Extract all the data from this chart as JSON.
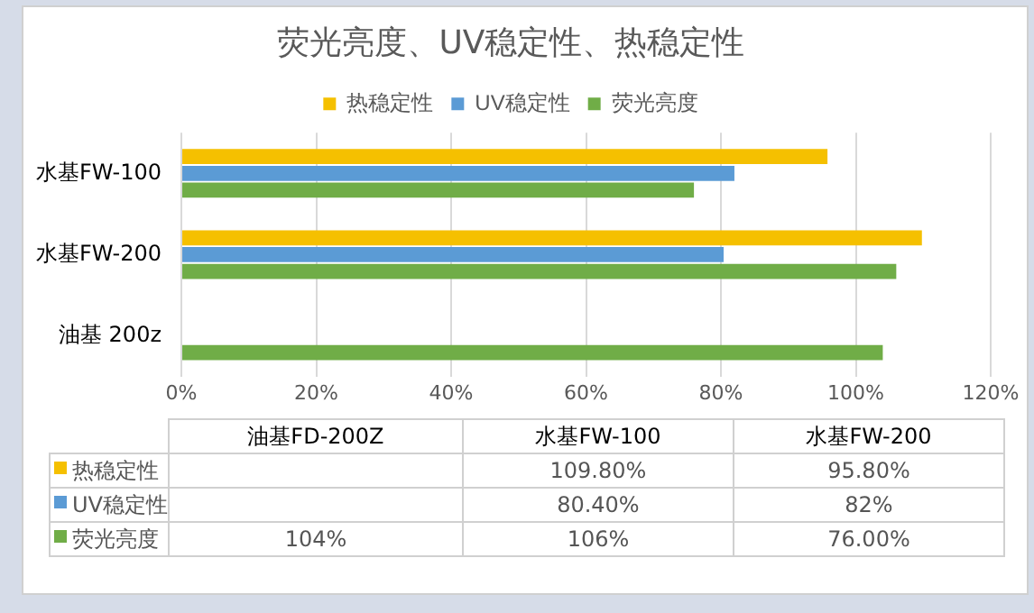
{
  "chart_data": [
    {
      "type": "bar",
      "orientation": "horizontal",
      "title": "荧光亮度、UV稳定性、热稳定性",
      "legend": "top",
      "categories": [
        "水基FW-100",
        "水基FW-200",
        "油基 200z"
      ],
      "series": [
        {
          "name": "热稳定性",
          "color": "#f5c000",
          "values": [
            95.8,
            109.8,
            null
          ]
        },
        {
          "name": "UV稳定性",
          "color": "#5b9bd5",
          "values": [
            82,
            80.4,
            null
          ]
        },
        {
          "name": "荧光亮度",
          "color": "#70ad47",
          "values": [
            76,
            106,
            104
          ]
        }
      ],
      "xlim": [
        0,
        120
      ],
      "xticks": [
        {
          "value": 0,
          "label": "0%"
        },
        {
          "value": 20,
          "label": "20%"
        },
        {
          "value": 40,
          "label": "40%"
        },
        {
          "value": 60,
          "label": "60%"
        },
        {
          "value": 80,
          "label": "80%"
        },
        {
          "value": 100,
          "label": "100%"
        },
        {
          "value": 120,
          "label": "120%"
        }
      ],
      "grid": "x"
    },
    {
      "type": "other",
      "categories": [
        "油基FD-200Z",
        "水基FW-100",
        "水基FW-200"
      ],
      "series": [
        {
          "name": "热稳定性",
          "color": "#f5c000",
          "values": [
            null,
            109.8,
            95.8
          ],
          "value_labels": [
            null,
            "109.80%",
            "95.80%"
          ]
        },
        {
          "name": "UV稳定性",
          "color": "#5b9bd5",
          "values": [
            null,
            80.4,
            82
          ],
          "value_labels": [
            null,
            "80.40%",
            "82%"
          ]
        },
        {
          "name": "荧光亮度",
          "color": "#70ad47",
          "values": [
            104,
            106,
            76
          ],
          "value_labels": [
            "104%",
            "106%",
            "76.00%"
          ]
        }
      ]
    }
  ]
}
